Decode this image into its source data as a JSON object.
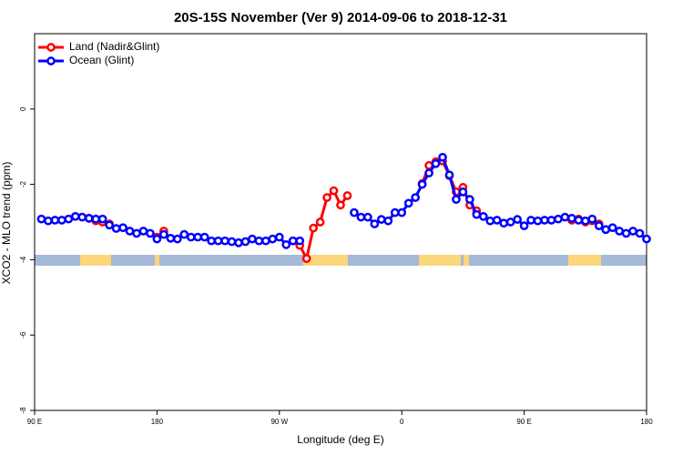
{
  "chart_data": {
    "type": "line",
    "title": "20S-15S November (Ver 9)   2014-09-06 to 2018-12-31",
    "x_label": "Longitude (deg E)",
    "y_label": "XCO2 - MLO trend (ppm)",
    "xlim": [
      90,
      540
    ],
    "xticks": [
      {
        "value": 90,
        "label": "90 E"
      },
      {
        "value": 180,
        "label": "180"
      },
      {
        "value": 270,
        "label": "90 W"
      },
      {
        "value": 360,
        "label": "0"
      },
      {
        "value": 450,
        "label": "90 E"
      },
      {
        "value": 540,
        "label": "180"
      }
    ],
    "ylim": [
      -8,
      2
    ],
    "yticks": [
      0,
      -2,
      -4,
      -6,
      -8
    ],
    "legend": "top-left",
    "x": [
      95,
      100,
      105,
      110,
      115,
      120,
      125,
      130,
      135,
      140,
      145,
      150,
      155,
      160,
      165,
      170,
      175,
      180,
      185,
      190,
      195,
      200,
      205,
      210,
      215,
      220,
      225,
      230,
      235,
      240,
      245,
      250,
      255,
      260,
      265,
      270,
      275,
      280,
      285,
      290,
      295,
      300,
      305,
      310,
      315,
      320,
      325,
      330,
      335,
      340,
      345,
      350,
      355,
      360,
      365,
      370,
      375,
      380,
      385,
      390,
      395,
      400,
      405,
      410,
      415,
      420,
      425,
      430,
      435,
      440,
      445,
      450,
      455,
      460,
      465,
      470,
      475,
      480,
      485,
      490,
      495,
      500,
      505,
      510,
      515,
      520,
      525,
      530,
      535,
      540
    ],
    "series": [
      {
        "name": "Land (Nadir&Glint)",
        "color": "#ff0000",
        "values": [
          null,
          null,
          null,
          null,
          null,
          null,
          null,
          -2.9,
          -2.97,
          -3.0,
          -3.05,
          null,
          null,
          null,
          null,
          null,
          null,
          -3.4,
          -3.24,
          null,
          null,
          null,
          null,
          null,
          null,
          null,
          null,
          null,
          null,
          null,
          null,
          null,
          null,
          null,
          null,
          null,
          null,
          -3.5,
          -3.62,
          -3.97,
          -3.16,
          -3.0,
          -2.35,
          -2.17,
          -2.55,
          -2.3,
          null,
          null,
          null,
          null,
          null,
          null,
          null,
          null,
          null,
          null,
          -1.98,
          -1.5,
          -1.4,
          -1.38,
          -1.77,
          -2.2,
          -2.08,
          -2.55,
          -2.7,
          null,
          null,
          null,
          null,
          null,
          null,
          null,
          null,
          null,
          null,
          null,
          null,
          null,
          -2.95,
          -2.92,
          -3.0,
          -2.97,
          -3.05,
          null,
          null,
          null,
          null,
          null,
          null,
          null
        ]
      },
      {
        "name": "Ocean (Glint)",
        "color": "#0000ff",
        "values": [
          -2.92,
          -2.97,
          -2.95,
          -2.95,
          -2.92,
          -2.85,
          -2.87,
          -2.9,
          -2.92,
          -2.92,
          -3.08,
          -3.17,
          -3.15,
          -3.24,
          -3.3,
          -3.24,
          -3.3,
          -3.45,
          -3.33,
          -3.43,
          -3.45,
          -3.33,
          -3.4,
          -3.4,
          -3.4,
          -3.5,
          -3.5,
          -3.5,
          -3.52,
          -3.55,
          -3.52,
          -3.45,
          -3.5,
          -3.5,
          -3.45,
          -3.4,
          -3.6,
          -3.5,
          -3.5,
          null,
          null,
          null,
          null,
          null,
          null,
          null,
          -2.75,
          -2.87,
          -2.87,
          -3.05,
          -2.93,
          -2.97,
          -2.75,
          -2.75,
          -2.5,
          -2.35,
          -2.0,
          -1.7,
          -1.45,
          -1.28,
          -1.75,
          -2.4,
          -2.2,
          -2.4,
          -2.8,
          -2.85,
          -2.97,
          -2.95,
          -3.03,
          -3.0,
          -2.93,
          -3.1,
          -2.95,
          -2.97,
          -2.95,
          -2.95,
          -2.92,
          -2.87,
          -2.9,
          -2.95,
          -2.97,
          -2.92,
          -3.1,
          -3.2,
          -3.15,
          -3.24,
          -3.3,
          -3.24,
          -3.3,
          -3.45
        ]
      }
    ]
  }
}
